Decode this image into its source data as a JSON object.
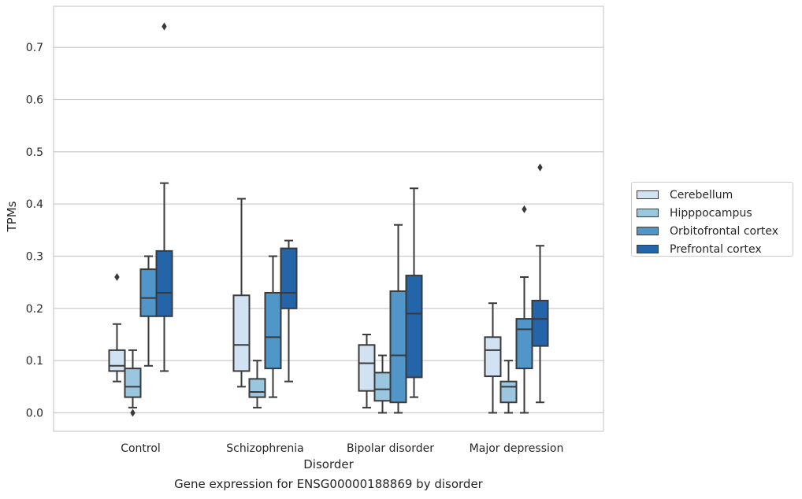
{
  "chart_data": {
    "type": "box",
    "xlabel": "Disorder",
    "ylabel": "TPMs",
    "ylim": [
      -0.035,
      0.775
    ],
    "yticks": [
      "0.0",
      "0.1",
      "0.2",
      "0.3",
      "0.4",
      "0.5",
      "0.6",
      "0.7"
    ],
    "categories": [
      "Control",
      "Schizophrenia",
      "Bipolar disorder",
      "Major depression"
    ],
    "grid": true,
    "legend_position": "right-outside",
    "series": [
      {
        "name": "Cerebellum",
        "color": "#d1e2f2",
        "boxes": [
          {
            "whisker_low": 0.06,
            "q1": 0.08,
            "median": 0.09,
            "q3": 0.12,
            "whisker_high": 0.17,
            "outliers": [
              0.26
            ]
          },
          {
            "whisker_low": 0.05,
            "q1": 0.08,
            "median": 0.13,
            "q3": 0.225,
            "whisker_high": 0.41,
            "outliers": []
          },
          {
            "whisker_low": 0.01,
            "q1": 0.042,
            "median": 0.095,
            "q3": 0.13,
            "whisker_high": 0.15,
            "outliers": []
          },
          {
            "whisker_low": 0.0,
            "q1": 0.07,
            "median": 0.12,
            "q3": 0.145,
            "whisker_high": 0.21,
            "outliers": []
          }
        ]
      },
      {
        "name": "Hipppocampus",
        "color": "#9ac6e0",
        "boxes": [
          {
            "whisker_low": 0.01,
            "q1": 0.03,
            "median": 0.05,
            "q3": 0.085,
            "whisker_high": 0.12,
            "outliers": [
              0.0
            ]
          },
          {
            "whisker_low": 0.01,
            "q1": 0.03,
            "median": 0.04,
            "q3": 0.065,
            "whisker_high": 0.1,
            "outliers": []
          },
          {
            "whisker_low": 0.0,
            "q1": 0.023,
            "median": 0.045,
            "q3": 0.077,
            "whisker_high": 0.11,
            "outliers": []
          },
          {
            "whisker_low": 0.0,
            "q1": 0.02,
            "median": 0.05,
            "q3": 0.06,
            "whisker_high": 0.1,
            "outliers": []
          }
        ]
      },
      {
        "name": "Orbitofrontal cortex",
        "color": "#5096c8",
        "boxes": [
          {
            "whisker_low": 0.09,
            "q1": 0.185,
            "median": 0.22,
            "q3": 0.275,
            "whisker_high": 0.3,
            "outliers": []
          },
          {
            "whisker_low": 0.03,
            "q1": 0.085,
            "median": 0.145,
            "q3": 0.23,
            "whisker_high": 0.3,
            "outliers": []
          },
          {
            "whisker_low": 0.0,
            "q1": 0.02,
            "median": 0.11,
            "q3": 0.233,
            "whisker_high": 0.36,
            "outliers": []
          },
          {
            "whisker_low": 0.0,
            "q1": 0.085,
            "median": 0.16,
            "q3": 0.18,
            "whisker_high": 0.26,
            "outliers": [
              0.39
            ]
          }
        ]
      },
      {
        "name": "Prefrontal cortex",
        "color": "#2464a8",
        "boxes": [
          {
            "whisker_low": 0.08,
            "q1": 0.185,
            "median": 0.23,
            "q3": 0.31,
            "whisker_high": 0.44,
            "outliers": [
              0.74
            ]
          },
          {
            "whisker_low": 0.06,
            "q1": 0.2,
            "median": 0.23,
            "q3": 0.315,
            "whisker_high": 0.33,
            "outliers": []
          },
          {
            "whisker_low": 0.03,
            "q1": 0.068,
            "median": 0.19,
            "q3": 0.263,
            "whisker_high": 0.43,
            "outliers": []
          },
          {
            "whisker_low": 0.02,
            "q1": 0.128,
            "median": 0.18,
            "q3": 0.215,
            "whisker_high": 0.32,
            "outliers": [
              0.47
            ]
          }
        ]
      }
    ]
  },
  "caption": "Gene expression for ENSG00000188869 by disorder"
}
